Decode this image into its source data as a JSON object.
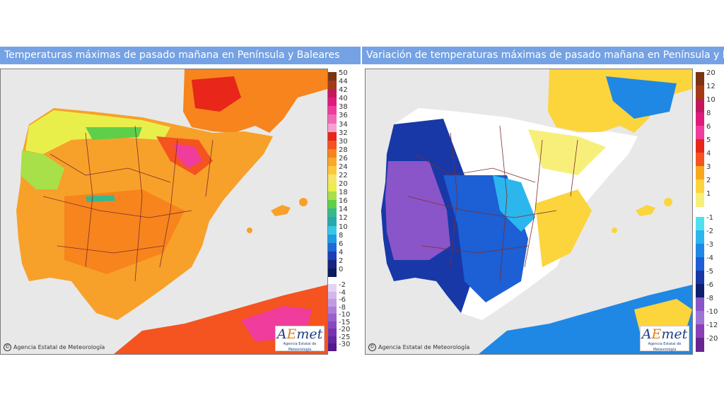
{
  "left_panel": {
    "title": "Temperaturas máximas de pasado mañana en Península y Baleares",
    "copyright": "Agencia Estatal de Meteorología",
    "logo": {
      "word": "AEmet",
      "subtitle": "Agencia Estatal de Meteorología"
    },
    "legend": {
      "upper_labels": [
        "50",
        "44",
        "42",
        "40",
        "38",
        "36",
        "34",
        "32",
        "30",
        "28",
        "26",
        "24",
        "22",
        "20",
        "18",
        "16",
        "14",
        "12",
        "10",
        "8",
        "6",
        "4",
        "2",
        "0"
      ],
      "upper_colors": [
        "#7b3410",
        "#a53a17",
        "#c2185b",
        "#e0197d",
        "#f03c9c",
        "#f26ab6",
        "#f7a1cf",
        "#e8261a",
        "#f5531f",
        "#f7841d",
        "#fba72a",
        "#fcc93c",
        "#f7e56a",
        "#e8ef4b",
        "#a8e04a",
        "#5fcf4a",
        "#35b98f",
        "#28a8a8",
        "#34c8e6",
        "#1e9ae5",
        "#2067d8",
        "#1b3fb8",
        "#1a2381",
        "#0c1a5e"
      ],
      "lower_labels": [
        "-2",
        "-4",
        "-6",
        "-8",
        "-10",
        "-15",
        "-20",
        "-25",
        "-30"
      ],
      "lower_colors": [
        "#e4d2f2",
        "#d3b7ec",
        "#c19ae3",
        "#ae7cd8",
        "#9a60cc",
        "#8848c0",
        "#7632b2",
        "#65259f",
        "#52188c"
      ]
    }
  },
  "right_panel": {
    "title": "Variación de temperaturas máximas de pasado mañana en Península y Baleares",
    "copyright": "Agencia Estatal de Meteorología",
    "logo": {
      "word": "AEmet",
      "subtitle": "Agencia Estatal de Meteorología"
    },
    "legend": {
      "upper_labels": [
        "20",
        "12",
        "10",
        "8",
        "6",
        "5",
        "4",
        "3",
        "2",
        "1"
      ],
      "upper_colors": [
        "#7b3410",
        "#a53a17",
        "#c2185b",
        "#e0197d",
        "#f03c9c",
        "#e8261a",
        "#f5531f",
        "#f7a81d",
        "#fcd43c",
        "#f7ef7a"
      ],
      "lower_labels": [
        "-1",
        "-2",
        "-3",
        "-4",
        "-5",
        "-6",
        "-8",
        "-10",
        "-12",
        "-20"
      ],
      "lower_colors": [
        "#4fe0ee",
        "#2bb6ee",
        "#1f88e5",
        "#1d5fd4",
        "#1838a8",
        "#101e6e",
        "#8a55c8",
        "#a074d6",
        "#8a3fb8",
        "#6a248f"
      ]
    }
  },
  "colors": {
    "title_bar": "#74a2e4",
    "sea": "#e8e8e8",
    "border": "#7a2e2e"
  }
}
